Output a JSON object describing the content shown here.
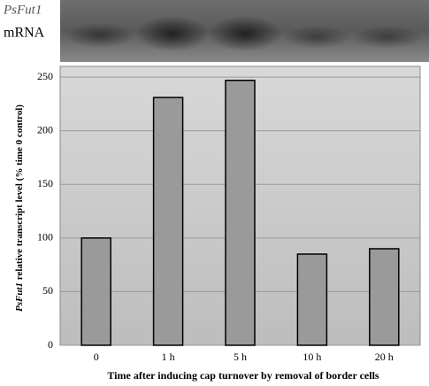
{
  "blot": {
    "gene": "PsFut1",
    "label": "mRNA"
  },
  "chart_data": {
    "type": "bar",
    "y_label_gene": "PsFut1",
    "y_label": " relative transcript level (% time 0 control)",
    "x_label": "Time after inducing cap turnover by removal of border cells",
    "categories": [
      "0",
      "1 h",
      "5 h",
      "10 h",
      "20 h"
    ],
    "values": [
      100,
      231,
      247,
      85,
      90
    ],
    "color": "#9a9a9a",
    "ylim": [
      0,
      260
    ],
    "yticks": [
      0,
      50,
      100,
      150,
      200,
      250
    ],
    "grid": true
  }
}
